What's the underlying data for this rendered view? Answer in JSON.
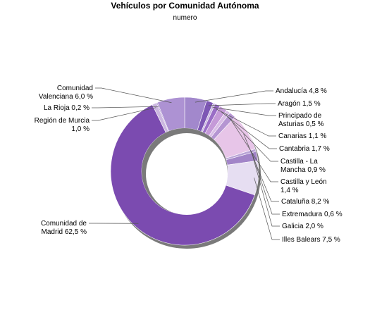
{
  "chart_data": {
    "type": "pie",
    "variant": "donut",
    "title": "Vehículos por Comunidad Autónoma",
    "subtitle": "numero",
    "slices": [
      {
        "name": "Andalucía",
        "label": "Andalucía 4,8 %",
        "value": 4.8,
        "color": "#a288cc"
      },
      {
        "name": "Aragón",
        "label": "Aragón 1,5 %",
        "value": 1.5,
        "color": "#7d57b4"
      },
      {
        "name": "Principado de Asturias",
        "label": "Principado de|Asturias 0,5 %",
        "value": 0.5,
        "color": "#c9b7e0"
      },
      {
        "name": "Canarias",
        "label": "Canarias 1,1 %",
        "value": 1.1,
        "color": "#9a6dc6"
      },
      {
        "name": "Cantabria",
        "label": "Cantabria 1,7 %",
        "value": 1.7,
        "color": "#c59ad8"
      },
      {
        "name": "Castilla - La Mancha",
        "label": "Castilla - La|Mancha 0,9 %",
        "value": 0.9,
        "color": "#d9bde6"
      },
      {
        "name": "Castilla y León",
        "label": "Castilla y León|1,4 %",
        "value": 1.4,
        "color": "#b595d2"
      },
      {
        "name": "Cataluña",
        "label": "Cataluña 8,2 %",
        "value": 8.2,
        "color": "#e7c5e8"
      },
      {
        "name": "Extremadura",
        "label": "Extremadura 0,6 %",
        "value": 0.6,
        "color": "#b9a3d6"
      },
      {
        "name": "Galicia",
        "label": "Galicia 2,0 %",
        "value": 2.0,
        "color": "#a285c8"
      },
      {
        "name": "Illes Balears",
        "label": "Illes Balears 7,5 %",
        "value": 7.5,
        "color": "#e6def2"
      },
      {
        "name": "Comunidad de Madrid",
        "label": "Comunidad de|Madrid 62,5 %",
        "value": 62.5,
        "color": "#7b4bb0"
      },
      {
        "name": "Región de Murcia",
        "label": "Región de Murcia|1,0 %",
        "value": 1.0,
        "color": "#cbb7e0"
      },
      {
        "name": "La Rioja",
        "label": "La Rioja 0,2 %",
        "value": 0.2,
        "color": "#9272c0"
      },
      {
        "name": "Comunidad Valenciana",
        "label": "Comunidad|Valenciana 6,0 %",
        "value": 6.0,
        "color": "#ad92d3"
      }
    ]
  }
}
